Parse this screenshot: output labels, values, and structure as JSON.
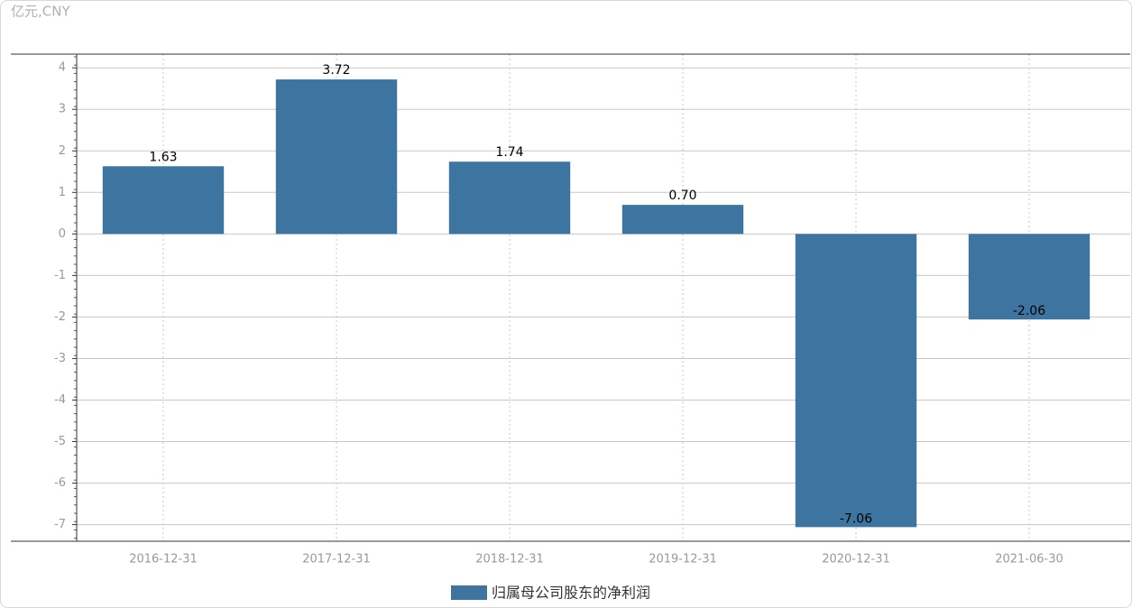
{
  "chart_data": {
    "type": "bar",
    "unit": "亿元,CNY",
    "categories": [
      "2016-12-31",
      "2017-12-31",
      "2018-12-31",
      "2019-12-31",
      "2020-12-31",
      "2021-06-30"
    ],
    "series": [
      {
        "name": "归属母公司股东的净利润",
        "color": "#3d75a0",
        "values": [
          1.63,
          3.72,
          1.74,
          0.7,
          -7.06,
          -2.06
        ],
        "value_labels": [
          "1.63",
          "3.72",
          "1.74",
          "0.70",
          "-7.06",
          "-2.06"
        ]
      }
    ],
    "ylim": [
      -7.4,
      4.33
    ],
    "yticks": [
      -7,
      -6,
      -5,
      -4,
      -3,
      -2,
      -1,
      0,
      1,
      2,
      3,
      4
    ],
    "grid": true
  }
}
